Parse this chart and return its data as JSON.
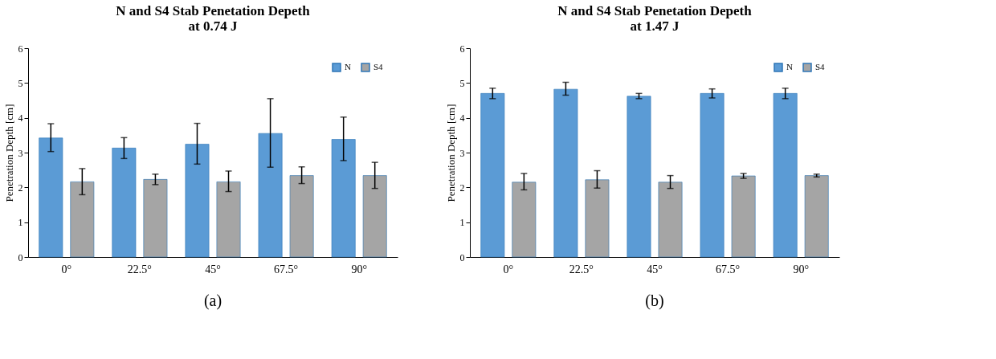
{
  "chart_data": [
    {
      "type": "bar",
      "title": "N and S4 Stab Penetation Depeth\nat 0.74 J",
      "ylabel": "Penetration Depth [cm]",
      "categories": [
        "0°",
        "22.5°",
        "45°",
        "67.5°",
        "90°"
      ],
      "series": [
        {
          "name": "N",
          "color": "#5b9bd5",
          "values": [
            3.42,
            3.13,
            3.24,
            3.55,
            3.38
          ],
          "errors": [
            [
              3.03,
              3.83
            ],
            [
              2.83,
              3.43
            ],
            [
              2.67,
              3.84
            ],
            [
              2.58,
              4.55
            ],
            [
              2.77,
              4.02
            ]
          ]
        },
        {
          "name": "S4",
          "color": "#a5a5a5",
          "values": [
            2.16,
            2.23,
            2.16,
            2.34,
            2.34
          ],
          "errors": [
            [
              1.79,
              2.54
            ],
            [
              2.08,
              2.38
            ],
            [
              1.88,
              2.47
            ],
            [
              2.11,
              2.59
            ],
            [
              1.97,
              2.72
            ]
          ]
        }
      ],
      "ylim": [
        0,
        6
      ],
      "yticks": [
        0,
        1,
        2,
        3,
        4,
        5,
        6
      ],
      "grid": false,
      "legend": "top right",
      "annotations": [
        "(a)"
      ]
    },
    {
      "type": "bar",
      "title": "N and S4 Stab Penetation Depeth\nat 1.47 J",
      "ylabel": "Penetration Depth [cm]",
      "categories": [
        "0°",
        "22.5°",
        "45°",
        "67.5°",
        "90°"
      ],
      "series": [
        {
          "name": "N",
          "color": "#5b9bd5",
          "values": [
            4.7,
            4.82,
            4.62,
            4.7,
            4.7
          ],
          "errors": [
            [
              4.55,
              4.85
            ],
            [
              4.65,
              5.02
            ],
            [
              4.55,
              4.7
            ],
            [
              4.57,
              4.83
            ],
            [
              4.55,
              4.85
            ]
          ]
        },
        {
          "name": "S4",
          "color": "#a5a5a5",
          "values": [
            2.15,
            2.22,
            2.15,
            2.33,
            2.34
          ],
          "errors": [
            [
              1.93,
              2.4
            ],
            [
              1.98,
              2.48
            ],
            [
              1.97,
              2.34
            ],
            [
              2.26,
              2.4
            ],
            [
              2.3,
              2.38
            ]
          ]
        }
      ],
      "ylim": [
        0,
        6
      ],
      "yticks": [
        0,
        1,
        2,
        3,
        4,
        5,
        6
      ],
      "grid": false,
      "legend": "top right",
      "annotations": [
        "(b)"
      ]
    }
  ]
}
